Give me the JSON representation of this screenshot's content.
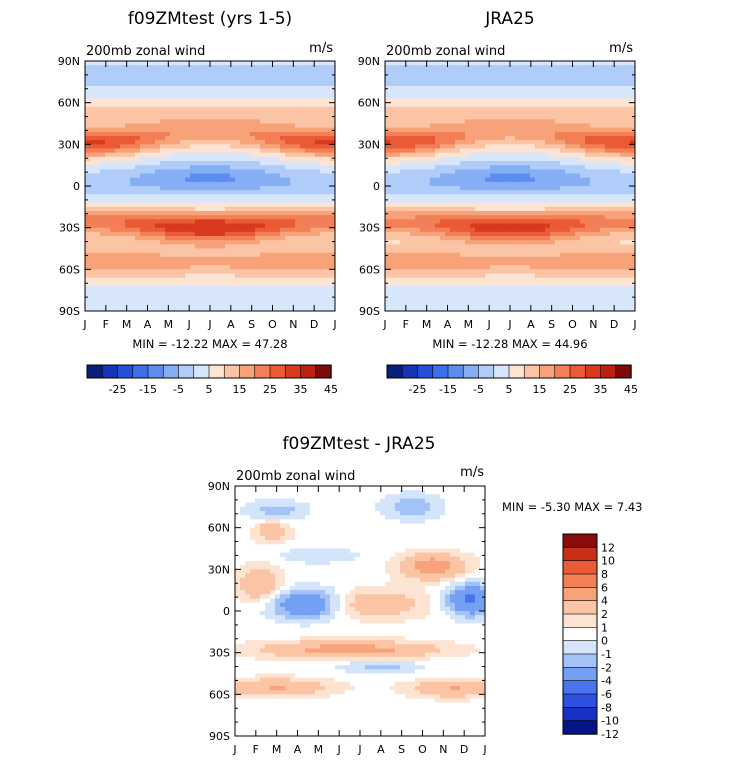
{
  "chart_data": [
    {
      "type": "heatmap",
      "title": "f09ZMtest (yrs 1-5)",
      "subtitle": "200mb zonal wind",
      "units": "m/s",
      "x": [
        "J",
        "F",
        "M",
        "A",
        "M",
        "J",
        "J",
        "A",
        "S",
        "O",
        "N",
        "D",
        "J"
      ],
      "y": [
        "90N",
        "60N",
        "30N",
        "0",
        "30S",
        "60S",
        "90S"
      ],
      "stats": "MIN = -12.22 MAX =  47.28",
      "colorbar_labels": [
        "-25",
        "-15",
        "-5",
        "5",
        "15",
        "25",
        "35",
        "45"
      ],
      "colorbar_orientation": "horizontal",
      "jet_peaks": {
        "nh_jet_lat": 30,
        "sh_jet_lat": -30,
        "equatorial_min_lat": 5
      }
    },
    {
      "type": "heatmap",
      "title": "JRA25",
      "subtitle": "200mb zonal wind",
      "units": "m/s",
      "x": [
        "J",
        "F",
        "M",
        "A",
        "M",
        "J",
        "J",
        "A",
        "S",
        "O",
        "N",
        "D",
        "J"
      ],
      "y": [
        "90N",
        "60N",
        "30N",
        "0",
        "30S",
        "60S",
        "90S"
      ],
      "stats": "MIN = -12.28 MAX =  44.96",
      "colorbar_labels": [
        "-25",
        "-15",
        "-5",
        "5",
        "15",
        "25",
        "35",
        "45"
      ],
      "colorbar_orientation": "horizontal"
    },
    {
      "type": "heatmap",
      "title": "f09ZMtest - JRA25",
      "subtitle": "200mb zonal wind",
      "units": "m/s",
      "x": [
        "J",
        "F",
        "M",
        "A",
        "M",
        "J",
        "J",
        "A",
        "S",
        "O",
        "N",
        "D",
        "J"
      ],
      "y": [
        "90N",
        "60N",
        "30N",
        "0",
        "30S",
        "60S",
        "90S"
      ],
      "stats": "MIN =  -5.30 MAX =   7.43",
      "colorbar_labels": [
        "12",
        "10",
        "8",
        "6",
        "4",
        "2",
        "1",
        "0",
        "-1",
        "-2",
        "-4",
        "-6",
        "-8",
        "-10",
        "-12"
      ],
      "colorbar_orientation": "vertical"
    }
  ],
  "colors": {
    "full_palette": [
      "#0a1f7a",
      "#1535b5",
      "#2750d8",
      "#3d6fe8",
      "#5c8cf0",
      "#86aef5",
      "#b0ccf8",
      "#d7e6fb",
      "#fde4d2",
      "#fbc4a4",
      "#f8a27a",
      "#f37f56",
      "#ea5b35",
      "#d9391c",
      "#bb2212",
      "#7f0a0a"
    ],
    "diff_palette": [
      "#06148a",
      "#1a2fc4",
      "#2d50e0",
      "#4a74ee",
      "#74a0f3",
      "#a3c3f7",
      "#d3e4fb",
      "#ffffff",
      "#fde4d2",
      "#fbc4a4",
      "#f8a27a",
      "#f37f56",
      "#ea5b35",
      "#c8301a",
      "#8a0c0c"
    ]
  }
}
